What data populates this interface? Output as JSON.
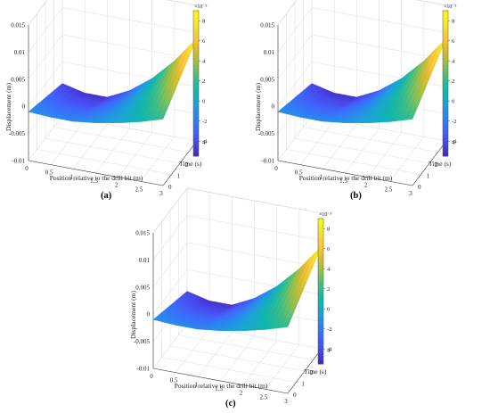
{
  "figure": {
    "panels": [
      "(a)",
      "(b)",
      "(c)"
    ]
  },
  "chart_data": [
    {
      "type": "surface",
      "panel": "(a)",
      "xlabel": "Position relative to the drill bit (m)",
      "ylabel": "Time (s)",
      "zlabel": "Displacement (m)",
      "xlim": [
        0,
        3
      ],
      "ylim": [
        0,
        4
      ],
      "zlim": [
        -0.01,
        0.015
      ],
      "xticks": [
        "0",
        "0.5",
        "1",
        "1.5",
        "2",
        "2.5",
        "3"
      ],
      "yticks": [
        "0",
        "1",
        "2",
        "3",
        "4"
      ],
      "zticks": [
        "-0.01",
        "-0.005",
        "0",
        "0.005",
        "0.01",
        "0.015"
      ],
      "colorbar": {
        "exponent": "×10⁻³",
        "ticks": [
          "8",
          "6",
          "4",
          "2",
          "0",
          "-2",
          "-4"
        ],
        "range": [
          -5.5,
          9
        ],
        "colormap": [
          "#3e26a8",
          "#4743e8",
          "#3f63fc",
          "#2b82f2",
          "#1aa2d5",
          "#0fb5ae",
          "#3bbd84",
          "#8cbf4f",
          "#d1bb2e",
          "#fcc43a",
          "#f4e424",
          "#f9fb0e"
        ]
      },
      "surface": {
        "x": [
          0,
          0.5,
          1,
          1.5,
          2,
          2.5,
          3
        ],
        "z_at_t4": [
          -0.004,
          -0.005,
          -0.005,
          -0.003,
          0.0,
          0.004,
          0.009
        ],
        "z_max": 0.009,
        "z_min": -0.005
      }
    },
    {
      "type": "surface",
      "panel": "(b)",
      "xlabel": "Position relative to the drill bit (m)",
      "ylabel": "Time (s)",
      "zlabel": "Displacement (m)",
      "xlim": [
        0,
        3
      ],
      "ylim": [
        0,
        4
      ],
      "zlim": [
        -0.01,
        0.015
      ],
      "xticks": [
        "0",
        "0.5",
        "1",
        "1.5",
        "2",
        "2.5",
        "3"
      ],
      "yticks": [
        "0",
        "1",
        "2",
        "3",
        "4"
      ],
      "zticks": [
        "-0.01",
        "-0.005",
        "0",
        "0.005",
        "0.01",
        "0.015"
      ],
      "colorbar": {
        "exponent": "×10⁻³",
        "ticks": [
          "8",
          "6",
          "4",
          "2",
          "0",
          "-2",
          "-4"
        ],
        "range": [
          -5.5,
          9
        ],
        "colormap": [
          "#3e26a8",
          "#4743e8",
          "#3f63fc",
          "#2b82f2",
          "#1aa2d5",
          "#0fb5ae",
          "#3bbd84",
          "#8cbf4f",
          "#d1bb2e",
          "#fcc43a",
          "#f4e424",
          "#f9fb0e"
        ]
      },
      "surface": {
        "x": [
          0,
          0.5,
          1,
          1.5,
          2,
          2.5,
          3
        ],
        "z_at_t4": [
          -0.004,
          -0.005,
          -0.005,
          -0.003,
          0.0,
          0.004,
          0.009
        ],
        "z_max": 0.009,
        "z_min": -0.005
      }
    },
    {
      "type": "surface",
      "panel": "(c)",
      "xlabel": "Position relative to the drill bit (m)",
      "ylabel": "Time (s)",
      "zlabel": "Displacement (m)",
      "xlim": [
        0,
        3
      ],
      "ylim": [
        0,
        4
      ],
      "zlim": [
        -0.01,
        0.015
      ],
      "xticks": [
        "0",
        "0.5",
        "1",
        "1.5",
        "2",
        "2.5",
        "3"
      ],
      "yticks": [
        "0",
        "1",
        "2",
        "3",
        "4"
      ],
      "zticks": [
        "-0.01",
        "-0.005",
        "0",
        "0.005",
        "0.01",
        "0.015"
      ],
      "colorbar": {
        "exponent": "×10⁻³",
        "ticks": [
          "8",
          "6",
          "4",
          "2",
          "0",
          "-2",
          "-4"
        ],
        "range": [
          -5.5,
          9
        ],
        "colormap": [
          "#3e26a8",
          "#4743e8",
          "#3f63fc",
          "#2b82f2",
          "#1aa2d5",
          "#0fb5ae",
          "#3bbd84",
          "#8cbf4f",
          "#d1bb2e",
          "#fcc43a",
          "#f4e424",
          "#f9fb0e"
        ]
      },
      "surface": {
        "x": [
          0,
          0.5,
          1,
          1.5,
          2,
          2.5,
          3
        ],
        "z_at_t4": [
          -0.004,
          -0.005,
          -0.005,
          -0.003,
          0.0,
          0.004,
          0.009
        ],
        "z_max": 0.009,
        "z_min": -0.005
      }
    }
  ]
}
